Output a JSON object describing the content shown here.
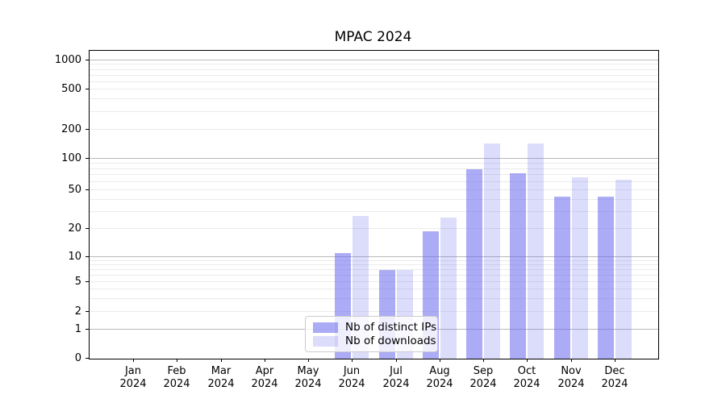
{
  "figure": {
    "title": "MPAC 2024"
  },
  "chart_data": {
    "type": "bar",
    "title": "MPAC 2024",
    "categories": [
      "Jan 2024",
      "Feb 2024",
      "Mar 2024",
      "Apr 2024",
      "May 2024",
      "Jun 2024",
      "Jul 2024",
      "Aug 2024",
      "Sep 2024",
      "Oct 2024",
      "Nov 2024",
      "Dec 2024"
    ],
    "series": [
      {
        "name": "Nb of distinct IPs",
        "color": "#6666ee",
        "alpha": 0.55,
        "values": [
          0,
          0,
          0,
          0,
          0,
          11,
          7,
          19,
          80,
          73,
          43,
          43
        ]
      },
      {
        "name": "Nb of downloads",
        "color": "#6666ee",
        "alpha": 0.23,
        "values": [
          0,
          0,
          0,
          0,
          0,
          27,
          7,
          26,
          145,
          145,
          66,
          63
        ]
      }
    ],
    "xlabel": "",
    "ylabel": "",
    "yscale": "symlog (linear 0-1, logarithmic above 1)",
    "yticks": [
      0,
      1,
      2,
      5,
      10,
      20,
      50,
      100,
      200,
      500,
      1000
    ],
    "ylim": [
      0,
      1230
    ],
    "grid": {
      "orientation": "horizontal",
      "major_at": [
        1,
        10,
        100,
        1000
      ],
      "minor_per_decade": [
        2,
        3,
        4,
        5,
        6,
        7,
        8,
        9
      ],
      "major_color": "#b9b9b9",
      "minor_color": "#ebebeb"
    },
    "legend_position": "lower center",
    "background": "#ffffff",
    "spine_color": "#000000"
  }
}
